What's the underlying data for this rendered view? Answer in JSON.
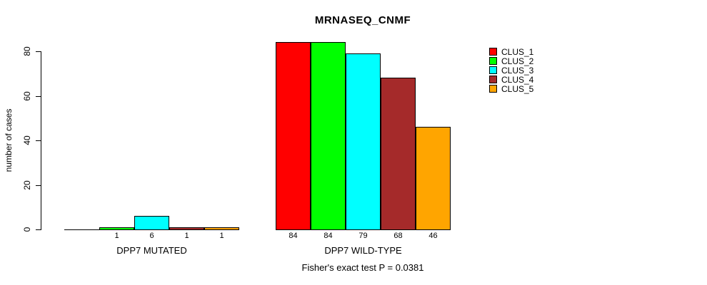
{
  "chart_data": {
    "type": "bar",
    "title": "MRNASEQ_CNMF",
    "ylabel": "number of cases",
    "yticks": [
      0,
      20,
      40,
      60,
      80
    ],
    "ylim": [
      0,
      84
    ],
    "grid": false,
    "legend_position": "top-right",
    "series": [
      {
        "name": "CLUS_1",
        "color": "#FF0000"
      },
      {
        "name": "CLUS_2",
        "color": "#00FF00"
      },
      {
        "name": "CLUS_3",
        "color": "#00FFFF"
      },
      {
        "name": "CLUS_4",
        "color": "#A52A2A"
      },
      {
        "name": "CLUS_5",
        "color": "#FFA500"
      }
    ],
    "groups": [
      {
        "label": "DPP7 MUTATED",
        "values": [
          0,
          1,
          6,
          1,
          1
        ],
        "bar_labels": [
          "",
          "1",
          "6",
          "1",
          "1"
        ]
      },
      {
        "label": "DPP7 WILD-TYPE",
        "values": [
          84,
          84,
          79,
          68,
          46
        ],
        "bar_labels": [
          "84",
          "84",
          "79",
          "68",
          "46"
        ]
      }
    ],
    "annotation": "Fisher's exact test P = 0.0381"
  }
}
